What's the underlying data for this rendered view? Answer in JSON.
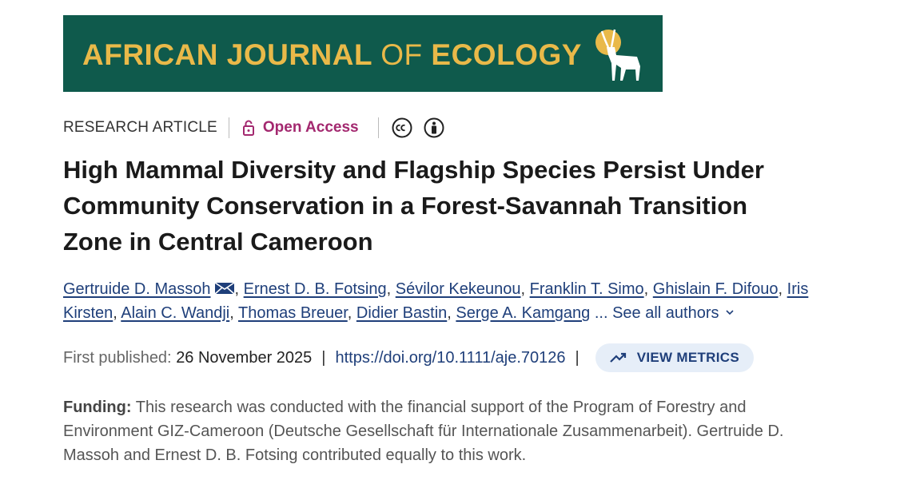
{
  "banner": {
    "journal_part1": "AFRICAN JOURNAL",
    "journal_part2": "OF",
    "journal_part3": "ECOLOGY"
  },
  "article": {
    "type": "RESEARCH ARTICLE",
    "access": "Open Access",
    "title_lines": [
      "High Mammal Diversity and Flagship Species Persist Under",
      "Community Conservation in a Forest-Savannah Transition",
      "Zone in Central Cameroon"
    ],
    "authors": [
      "Gertruide D. Massoh",
      "Ernest D. B. Fotsing",
      "Sévilor Kekeunou",
      "Franklin T. Simo",
      "Ghislain F. Difouo",
      "Iris Kirsten",
      "Alain C. Wandji",
      "Thomas Breuer",
      "Didier Bastin",
      "Serge A. Kamgang"
    ],
    "author_separator": ",",
    "see_all": "... See all authors",
    "published_label": "First published:",
    "published_date": "26 November 2025",
    "meta_separator": "|",
    "doi": "https://doi.org/10.1111/aje.70126",
    "metrics": "VIEW METRICS",
    "funding_label": "Funding:",
    "funding_text": "This research was conducted with the financial support of the Program of Forestry and Environment GIZ-Cameroon (Deutsche Gesellschaft für Internationale Zusammenarbeit). Gertruide D. Massoh and Ernest D. B. Fotsing contributed equally to this work."
  }
}
